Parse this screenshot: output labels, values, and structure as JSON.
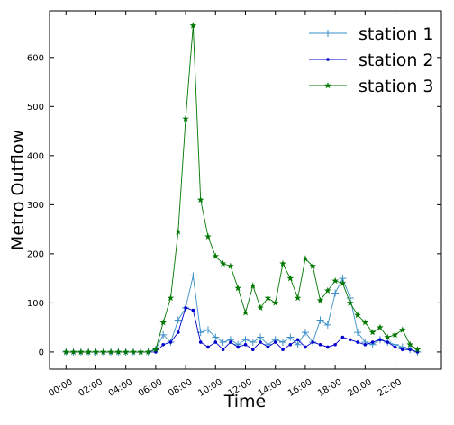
{
  "chart_data": {
    "type": "line",
    "xlabel": "Time",
    "ylabel": "Metro Outflow",
    "x": [
      0,
      0.5,
      1,
      1.5,
      2,
      2.5,
      3,
      3.5,
      4,
      4.5,
      5,
      5.5,
      6,
      6.5,
      7,
      7.5,
      8,
      8.5,
      9,
      9.5,
      10,
      10.5,
      11,
      11.5,
      12,
      12.5,
      13,
      13.5,
      14,
      14.5,
      15,
      15.5,
      16,
      16.5,
      17,
      17.5,
      18,
      18.5,
      19,
      19.5,
      20,
      20.5,
      21,
      21.5,
      22,
      22.5,
      23,
      23.5
    ],
    "series": [
      {
        "name": "station 1",
        "color": "#3a8fc8",
        "marker": "plus",
        "values": [
          0,
          0,
          0,
          0,
          0,
          0,
          0,
          0,
          0,
          0,
          0,
          0,
          5,
          35,
          20,
          65,
          90,
          155,
          40,
          45,
          30,
          20,
          25,
          15,
          25,
          20,
          30,
          15,
          25,
          20,
          30,
          15,
          40,
          20,
          65,
          55,
          120,
          150,
          110,
          40,
          20,
          15,
          25,
          20,
          15,
          10,
          5,
          0
        ]
      },
      {
        "name": "station 2",
        "color": "#0000cc",
        "marker": "dot",
        "values": [
          0,
          0,
          0,
          0,
          0,
          0,
          0,
          0,
          0,
          0,
          0,
          0,
          0,
          15,
          20,
          40,
          90,
          85,
          20,
          10,
          20,
          5,
          20,
          10,
          15,
          5,
          20,
          10,
          20,
          5,
          15,
          25,
          10,
          20,
          15,
          10,
          15,
          30,
          25,
          20,
          15,
          20,
          25,
          20,
          10,
          5,
          5,
          0
        ]
      },
      {
        "name": "station 3",
        "color": "#007700",
        "marker": "star",
        "values": [
          0,
          0,
          0,
          0,
          0,
          0,
          0,
          0,
          0,
          0,
          0,
          0,
          5,
          60,
          110,
          245,
          475,
          665,
          310,
          235,
          195,
          180,
          175,
          130,
          80,
          135,
          90,
          110,
          100,
          180,
          150,
          110,
          190,
          175,
          105,
          125,
          145,
          140,
          100,
          75,
          60,
          40,
          50,
          30,
          35,
          45,
          15,
          5
        ]
      }
    ],
    "xlim": [
      -1.1,
      25.1
    ],
    "xticks": [
      {
        "value": 0,
        "label": "00:00"
      },
      {
        "value": 2,
        "label": "02:00"
      },
      {
        "value": 4,
        "label": "04:00"
      },
      {
        "value": 6,
        "label": "06:00"
      },
      {
        "value": 8,
        "label": "08:00"
      },
      {
        "value": 10,
        "label": "10:00"
      },
      {
        "value": 12,
        "label": "12:00"
      },
      {
        "value": 14,
        "label": "14:00"
      },
      {
        "value": 16,
        "label": "16:00"
      },
      {
        "value": 18,
        "label": "18:00"
      },
      {
        "value": 20,
        "label": "20:00"
      },
      {
        "value": 22,
        "label": "22:00"
      }
    ],
    "ylim": [
      -35,
      695
    ],
    "yticks": [
      0,
      100,
      200,
      300,
      400,
      500,
      600
    ],
    "legend": "upper right",
    "grid": false
  }
}
